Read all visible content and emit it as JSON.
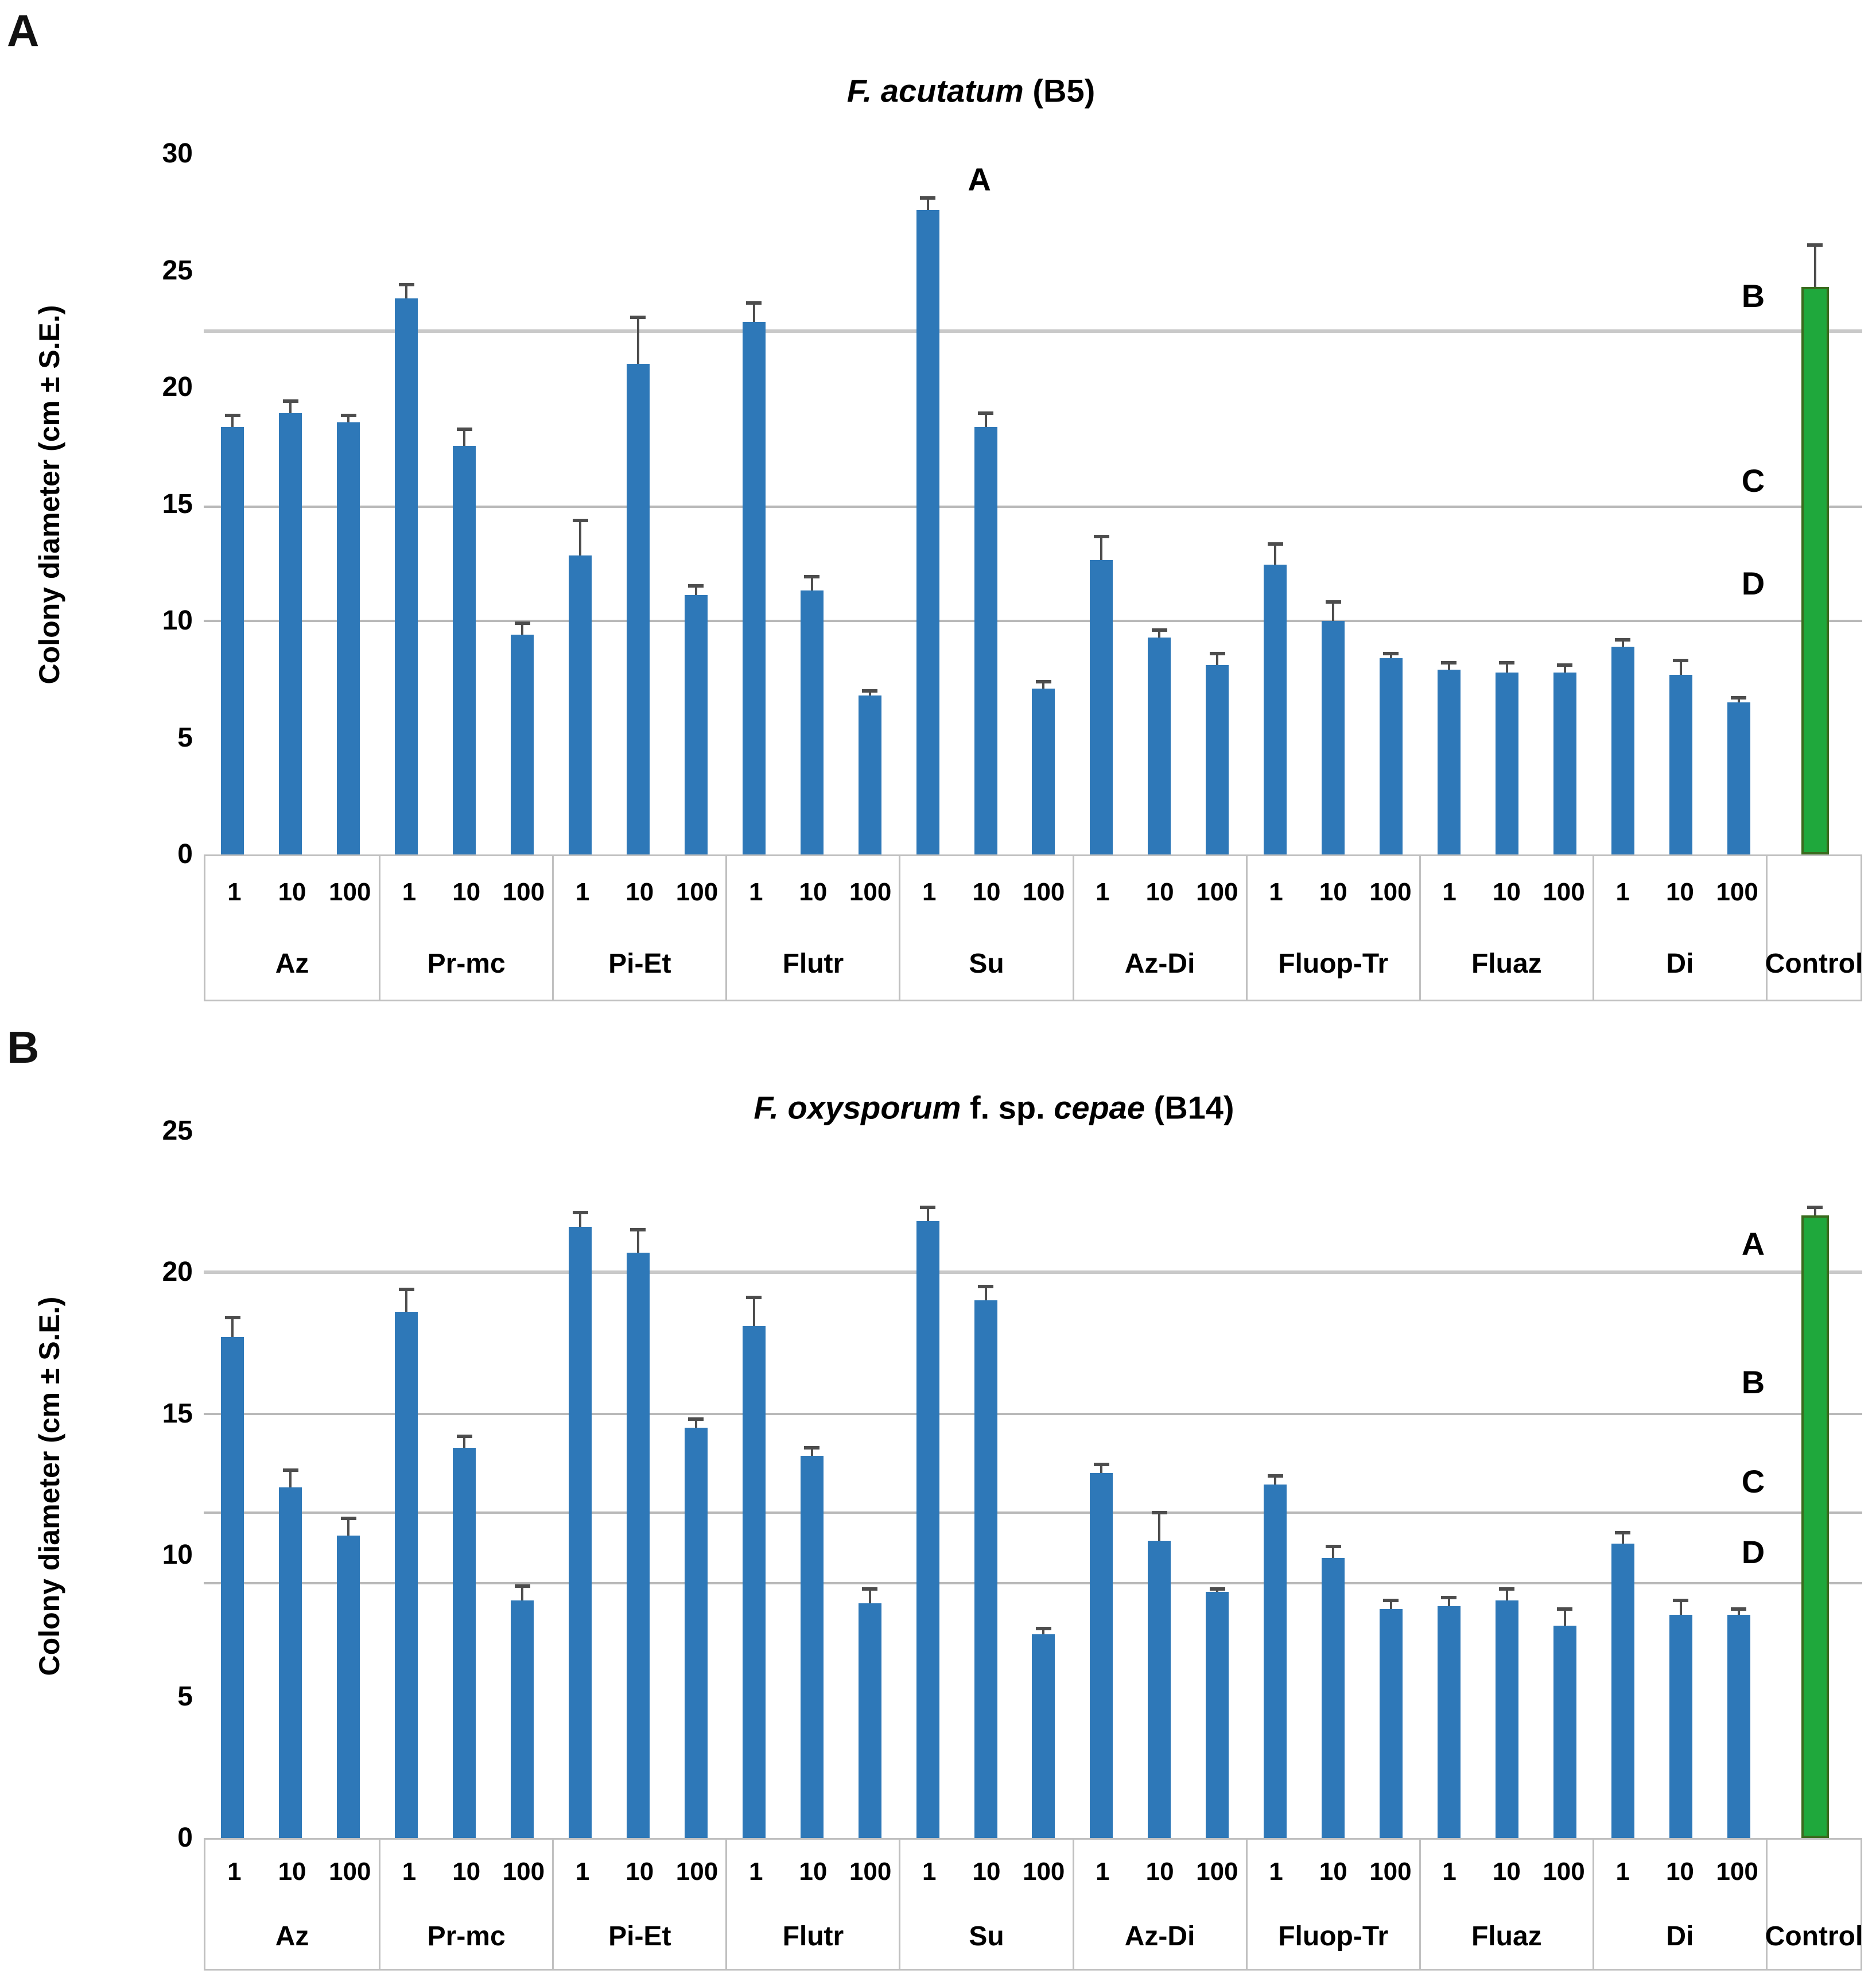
{
  "colors": {
    "bar_fill": "#2E78B8",
    "control_fill": "#1FA83C",
    "control_border": "#3A6B1E",
    "error_bar": "#4d4d4d",
    "gridline": "#b9b9b9",
    "band_border": "#c0c0c0",
    "text": "#000000",
    "background": "#ffffff"
  },
  "chart_data": [
    {
      "type": "bar",
      "panel_label": "A",
      "title_segments": [
        {
          "text": "F. acutatum",
          "italic": true
        },
        {
          "text": " (B5)",
          "italic": false
        }
      ],
      "y_axis_title": "Colony diameter (cm ± S.E.)",
      "ylabel": "Colony diameter (cm ± S.E.)",
      "xlabel": "",
      "ylim": [
        0,
        30
      ],
      "yticks": [
        0,
        5,
        10,
        15,
        20,
        25,
        30
      ],
      "grid_on": false,
      "group_boundary_lines": [
        22.4,
        14.9,
        10.0
      ],
      "concentrations": [
        "1",
        "10",
        "100"
      ],
      "categories": [
        "Az",
        "Pr-mc",
        "Pi-Et",
        "Flutr",
        "Su",
        "Az-Di",
        "Fluop-Tr",
        "Fluaz",
        "Di"
      ],
      "series": [
        {
          "name": "Az",
          "values": [
            18.3,
            18.9,
            18.5
          ],
          "errors": [
            0.5,
            0.5,
            0.3
          ]
        },
        {
          "name": "Pr-mc",
          "values": [
            23.8,
            17.5,
            9.4
          ],
          "errors": [
            0.6,
            0.7,
            0.5
          ]
        },
        {
          "name": "Pi-Et",
          "values": [
            12.8,
            21.0,
            11.1
          ],
          "errors": [
            1.5,
            2.0,
            0.4
          ]
        },
        {
          "name": "Flutr",
          "values": [
            22.8,
            11.3,
            6.8
          ],
          "errors": [
            0.8,
            0.6,
            0.2
          ]
        },
        {
          "name": "Su",
          "values": [
            27.6,
            18.3,
            7.1
          ],
          "errors": [
            0.5,
            0.6,
            0.3
          ]
        },
        {
          "name": "Az-Di",
          "values": [
            12.6,
            9.3,
            8.1
          ],
          "errors": [
            1.0,
            0.3,
            0.5
          ]
        },
        {
          "name": "Fluop-Tr",
          "values": [
            12.4,
            10.0,
            8.4
          ],
          "errors": [
            0.9,
            0.8,
            0.2
          ]
        },
        {
          "name": "Fluaz",
          "values": [
            7.9,
            7.8,
            7.8
          ],
          "errors": [
            0.3,
            0.4,
            0.3
          ]
        },
        {
          "name": "Di",
          "values": [
            8.9,
            7.7,
            6.5
          ],
          "errors": [
            0.3,
            0.6,
            0.2
          ]
        }
      ],
      "control": {
        "label": "Control",
        "value": 24.3,
        "error": 1.8
      },
      "significance_letters": [
        {
          "text": "A",
          "anchor": "bar",
          "group_index": 4,
          "bar_index": 0,
          "value": 28.9
        },
        {
          "text": "B",
          "anchor": "margin",
          "value": 23.9
        },
        {
          "text": "C",
          "anchor": "margin",
          "value": 16.0
        },
        {
          "text": "D",
          "anchor": "margin",
          "value": 11.6
        }
      ]
    },
    {
      "type": "bar",
      "panel_label": "B",
      "title_segments": [
        {
          "text": "F. oxysporum",
          "italic": true
        },
        {
          "text": " f. sp. ",
          "italic": false
        },
        {
          "text": "cepae",
          "italic": true
        },
        {
          "text": " (B14)",
          "italic": false
        }
      ],
      "y_axis_title": "Colony diameter (cm ± S.E.)",
      "ylabel": "Colony diameter (cm ± S.E.)",
      "xlabel": "",
      "ylim": [
        0,
        25
      ],
      "yticks": [
        0,
        5,
        10,
        15,
        20,
        25
      ],
      "grid_on": false,
      "group_boundary_lines": [
        20.0,
        15.0,
        11.5,
        9.0
      ],
      "concentrations": [
        "1",
        "10",
        "100"
      ],
      "categories": [
        "Az",
        "Pr-mc",
        "Pi-Et",
        "Flutr",
        "Su",
        "Az-Di",
        "Fluop-Tr",
        "Fluaz",
        "Di"
      ],
      "series": [
        {
          "name": "Az",
          "values": [
            17.7,
            12.4,
            10.7
          ],
          "errors": [
            0.7,
            0.6,
            0.6
          ]
        },
        {
          "name": "Pr-mc",
          "values": [
            18.6,
            13.8,
            8.4
          ],
          "errors": [
            0.8,
            0.4,
            0.5
          ]
        },
        {
          "name": "Pi-Et",
          "values": [
            21.6,
            20.7,
            14.5
          ],
          "errors": [
            0.5,
            0.8,
            0.3
          ]
        },
        {
          "name": "Flutr",
          "values": [
            18.1,
            13.5,
            8.3
          ],
          "errors": [
            1.0,
            0.3,
            0.5
          ]
        },
        {
          "name": "Su",
          "values": [
            21.8,
            19.0,
            7.2
          ],
          "errors": [
            0.5,
            0.5,
            0.2
          ]
        },
        {
          "name": "Az-Di",
          "values": [
            12.9,
            10.5,
            8.7
          ],
          "errors": [
            0.3,
            1.0,
            0.1
          ]
        },
        {
          "name": "Fluop-Tr",
          "values": [
            12.5,
            9.9,
            8.1
          ],
          "errors": [
            0.3,
            0.4,
            0.3
          ]
        },
        {
          "name": "Fluaz",
          "values": [
            8.2,
            8.4,
            7.5
          ],
          "errors": [
            0.3,
            0.4,
            0.6
          ]
        },
        {
          "name": "Di",
          "values": [
            10.4,
            7.9,
            7.9
          ],
          "errors": [
            0.4,
            0.5,
            0.2
          ]
        }
      ],
      "control": {
        "label": "Control",
        "value": 22.0,
        "error": 0.3
      },
      "significance_letters": [
        {
          "text": "A",
          "anchor": "margin",
          "value": 21.0
        },
        {
          "text": "B",
          "anchor": "margin",
          "value": 16.1
        },
        {
          "text": "C",
          "anchor": "margin",
          "value": 12.6
        },
        {
          "text": "D",
          "anchor": "margin",
          "value": 10.1
        }
      ]
    }
  ]
}
